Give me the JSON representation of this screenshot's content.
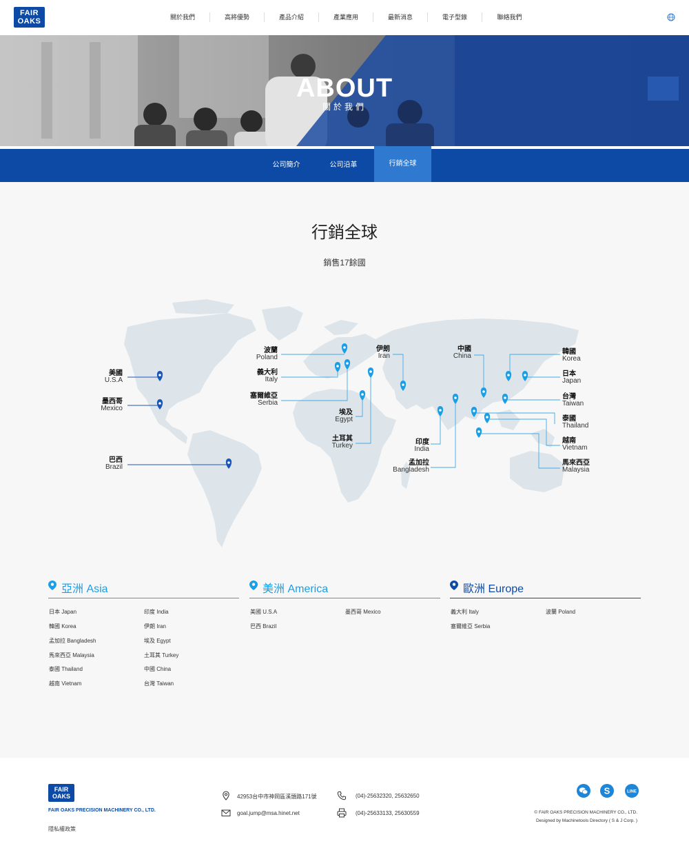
{
  "header": {
    "logo_line1": "FAIR",
    "logo_line2": "OAKS",
    "nav": [
      "關於我們",
      "高將優勢",
      "產品介紹",
      "產業應用",
      "最新消息",
      "電子型錄",
      "聯絡我們"
    ]
  },
  "hero": {
    "title": "ABOUT",
    "subtitle": "關於我們"
  },
  "tabs": [
    "公司簡介",
    "公司沿革",
    "行銷全球"
  ],
  "section": {
    "title": "行銷全球",
    "subtitle": "銷售17餘國"
  },
  "map_labels": {
    "usa": {
      "zh": "美國",
      "en": "U.S.A"
    },
    "mexico": {
      "zh": "墨西哥",
      "en": "Mexico"
    },
    "brazil": {
      "zh": "巴西",
      "en": "Brazil"
    },
    "poland": {
      "zh": "波蘭",
      "en": "Poland"
    },
    "italy": {
      "zh": "義大利",
      "en": "Italy"
    },
    "serbia": {
      "zh": "塞爾維亞",
      "en": "Serbia"
    },
    "egypt": {
      "zh": "埃及",
      "en": "Egypt"
    },
    "turkey": {
      "zh": "土耳其",
      "en": "Turkey"
    },
    "iran": {
      "zh": "伊朗",
      "en": "Iran"
    },
    "china": {
      "zh": "中國",
      "en": "China"
    },
    "india": {
      "zh": "印度",
      "en": "India"
    },
    "bangladesh": {
      "zh": "孟加拉",
      "en": "Bangladesh"
    },
    "korea": {
      "zh": "韓國",
      "en": "Korea"
    },
    "japan": {
      "zh": "日本",
      "en": "Japan"
    },
    "taiwan": {
      "zh": "台灣",
      "en": "Taiwan"
    },
    "thailand": {
      "zh": "泰國",
      "en": "Thailand"
    },
    "vietnam": {
      "zh": "越南",
      "en": "Vietnam"
    },
    "malaysia": {
      "zh": "馬來西亞",
      "en": "Malaysia"
    }
  },
  "regions": {
    "asia": {
      "title": "亞洲 Asia",
      "col1": [
        "日本 Japan",
        "韓國 Korea",
        "孟加拉 Bangladesh",
        "馬來西亞 Malaysia",
        "泰國 Thailand",
        "越南 Vietnam"
      ],
      "col2": [
        "印度 India",
        "伊朗 Iran",
        "埃及 Egypt",
        "土耳其 Turkey",
        "中國 China",
        "台灣 Taiwan"
      ]
    },
    "america": {
      "title": "美洲 America",
      "col1": [
        "美國 U.S.A",
        "巴西 Brazil"
      ],
      "col2": [
        "墨西哥 Mexico"
      ]
    },
    "europe": {
      "title": "歐洲 Europe",
      "col1": [
        "義大利 Italy",
        "塞爾維亞 Serbia"
      ],
      "col2": [
        "波蘭 Poland"
      ]
    }
  },
  "footer": {
    "logo_line1": "FAIR",
    "logo_line2": "OAKS",
    "company": "FAIR OAKS PRECISION MACHINERY CO., LTD.",
    "privacy": "隱私權政策",
    "address": "42953台中市神岡區溪頭路171號",
    "phone": "(04)-25632320, 25632650",
    "email": "goal.jump@msa.hinet.net",
    "fax": "(04)-25633133, 25630559",
    "copyright": "© FAIR OAKS PRECISION MACHINERY CO., LTD.",
    "designed": "Designed by Machinetools Directory ( S & J Corp. )",
    "social": [
      "wechat-icon",
      "skype-icon",
      "line-icon"
    ],
    "line_label": "LINE"
  }
}
